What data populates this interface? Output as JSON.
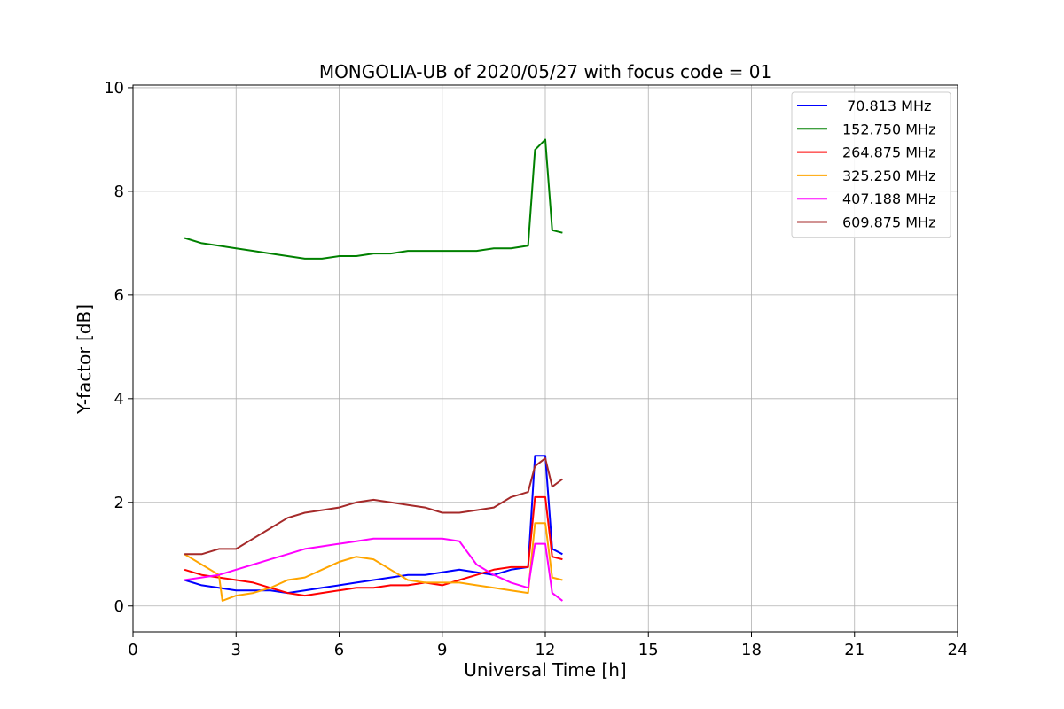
{
  "chart_data": {
    "type": "line",
    "title": "MONGOLIA-UB of 2020/05/27 with focus code = 01",
    "xlabel": "Universal Time [h]",
    "ylabel": "Y-factor [dB]",
    "xlim": [
      0,
      24
    ],
    "ylim": [
      -0.5,
      10.05
    ],
    "xticks": [
      0,
      3,
      6,
      9,
      12,
      15,
      18,
      21,
      24
    ],
    "xtick_labels": [
      "0",
      "3",
      "6",
      "9",
      "12",
      "15",
      "18",
      "21",
      "24"
    ],
    "yticks": [
      0,
      2,
      4,
      6,
      8,
      10
    ],
    "ytick_labels": [
      "0",
      "2",
      "4",
      "6",
      "8",
      "10"
    ],
    "grid": true,
    "legend_position": "top-right",
    "series": [
      {
        "name": " 70.813 MHz",
        "color": "#0000ff",
        "x": [
          1.5,
          2.0,
          2.5,
          3.0,
          3.5,
          4.0,
          4.5,
          5.0,
          5.5,
          6.0,
          6.5,
          7.0,
          7.5,
          8.0,
          8.5,
          9.0,
          9.5,
          10.0,
          10.5,
          11.0,
          11.5,
          11.7,
          12.0,
          12.2,
          12.5
        ],
        "y": [
          0.5,
          0.4,
          0.35,
          0.3,
          0.3,
          0.3,
          0.25,
          0.3,
          0.35,
          0.4,
          0.45,
          0.5,
          0.55,
          0.6,
          0.6,
          0.65,
          0.7,
          0.65,
          0.6,
          0.7,
          0.75,
          2.9,
          2.9,
          1.1,
          1.0
        ]
      },
      {
        "name": "152.750 MHz",
        "color": "#008000",
        "x": [
          1.5,
          2.0,
          2.5,
          3.0,
          3.5,
          4.0,
          4.5,
          5.0,
          5.5,
          6.0,
          6.5,
          7.0,
          7.5,
          8.0,
          8.5,
          9.0,
          9.5,
          10.0,
          10.5,
          11.0,
          11.5,
          11.7,
          12.0,
          12.2,
          12.5
        ],
        "y": [
          7.1,
          7.0,
          6.95,
          6.9,
          6.85,
          6.8,
          6.75,
          6.7,
          6.7,
          6.75,
          6.75,
          6.8,
          6.8,
          6.85,
          6.85,
          6.85,
          6.85,
          6.85,
          6.9,
          6.9,
          6.95,
          8.8,
          9.0,
          7.25,
          7.2
        ]
      },
      {
        "name": "264.875 MHz",
        "color": "#ff0000",
        "x": [
          1.5,
          2.0,
          2.5,
          3.0,
          3.5,
          4.0,
          4.5,
          5.0,
          5.5,
          6.0,
          6.5,
          7.0,
          7.5,
          8.0,
          8.5,
          9.0,
          9.5,
          10.0,
          10.5,
          11.0,
          11.5,
          11.7,
          12.0,
          12.2,
          12.5
        ],
        "y": [
          0.7,
          0.6,
          0.55,
          0.5,
          0.45,
          0.35,
          0.25,
          0.2,
          0.25,
          0.3,
          0.35,
          0.35,
          0.4,
          0.4,
          0.45,
          0.4,
          0.5,
          0.6,
          0.7,
          0.75,
          0.75,
          2.1,
          2.1,
          0.95,
          0.9
        ]
      },
      {
        "name": "325.250 MHz",
        "color": "#ffa500",
        "x": [
          1.5,
          2.0,
          2.5,
          2.6,
          3.0,
          3.5,
          4.0,
          4.5,
          5.0,
          5.5,
          6.0,
          6.5,
          7.0,
          7.5,
          8.0,
          8.5,
          9.0,
          9.5,
          10.0,
          10.5,
          11.0,
          11.5,
          11.7,
          12.0,
          12.2,
          12.5
        ],
        "y": [
          1.0,
          0.8,
          0.6,
          0.1,
          0.2,
          0.25,
          0.35,
          0.5,
          0.55,
          0.7,
          0.85,
          0.95,
          0.9,
          0.7,
          0.5,
          0.45,
          0.45,
          0.45,
          0.4,
          0.35,
          0.3,
          0.25,
          1.6,
          1.6,
          0.55,
          0.5
        ]
      },
      {
        "name": "407.188 MHz",
        "color": "#ff00ff",
        "x": [
          1.5,
          2.0,
          2.5,
          3.0,
          3.5,
          4.0,
          4.5,
          5.0,
          5.5,
          6.0,
          6.5,
          7.0,
          7.5,
          8.0,
          8.5,
          9.0,
          9.5,
          10.0,
          10.5,
          11.0,
          11.5,
          11.7,
          12.0,
          12.2,
          12.5
        ],
        "y": [
          0.5,
          0.55,
          0.6,
          0.7,
          0.8,
          0.9,
          1.0,
          1.1,
          1.15,
          1.2,
          1.25,
          1.3,
          1.3,
          1.3,
          1.3,
          1.3,
          1.25,
          0.8,
          0.6,
          0.45,
          0.35,
          1.2,
          1.2,
          0.25,
          0.1
        ]
      },
      {
        "name": "609.875 MHz",
        "color": "#a52a2a",
        "x": [
          1.5,
          2.0,
          2.5,
          3.0,
          3.5,
          4.0,
          4.5,
          5.0,
          5.5,
          6.0,
          6.5,
          7.0,
          7.5,
          8.0,
          8.5,
          9.0,
          9.5,
          10.0,
          10.5,
          11.0,
          11.5,
          11.7,
          12.0,
          12.2,
          12.5
        ],
        "y": [
          1.0,
          1.0,
          1.1,
          1.1,
          1.3,
          1.5,
          1.7,
          1.8,
          1.85,
          1.9,
          2.0,
          2.05,
          2.0,
          1.95,
          1.9,
          1.8,
          1.8,
          1.85,
          1.9,
          2.1,
          2.2,
          2.7,
          2.85,
          2.3,
          2.45
        ]
      }
    ]
  }
}
